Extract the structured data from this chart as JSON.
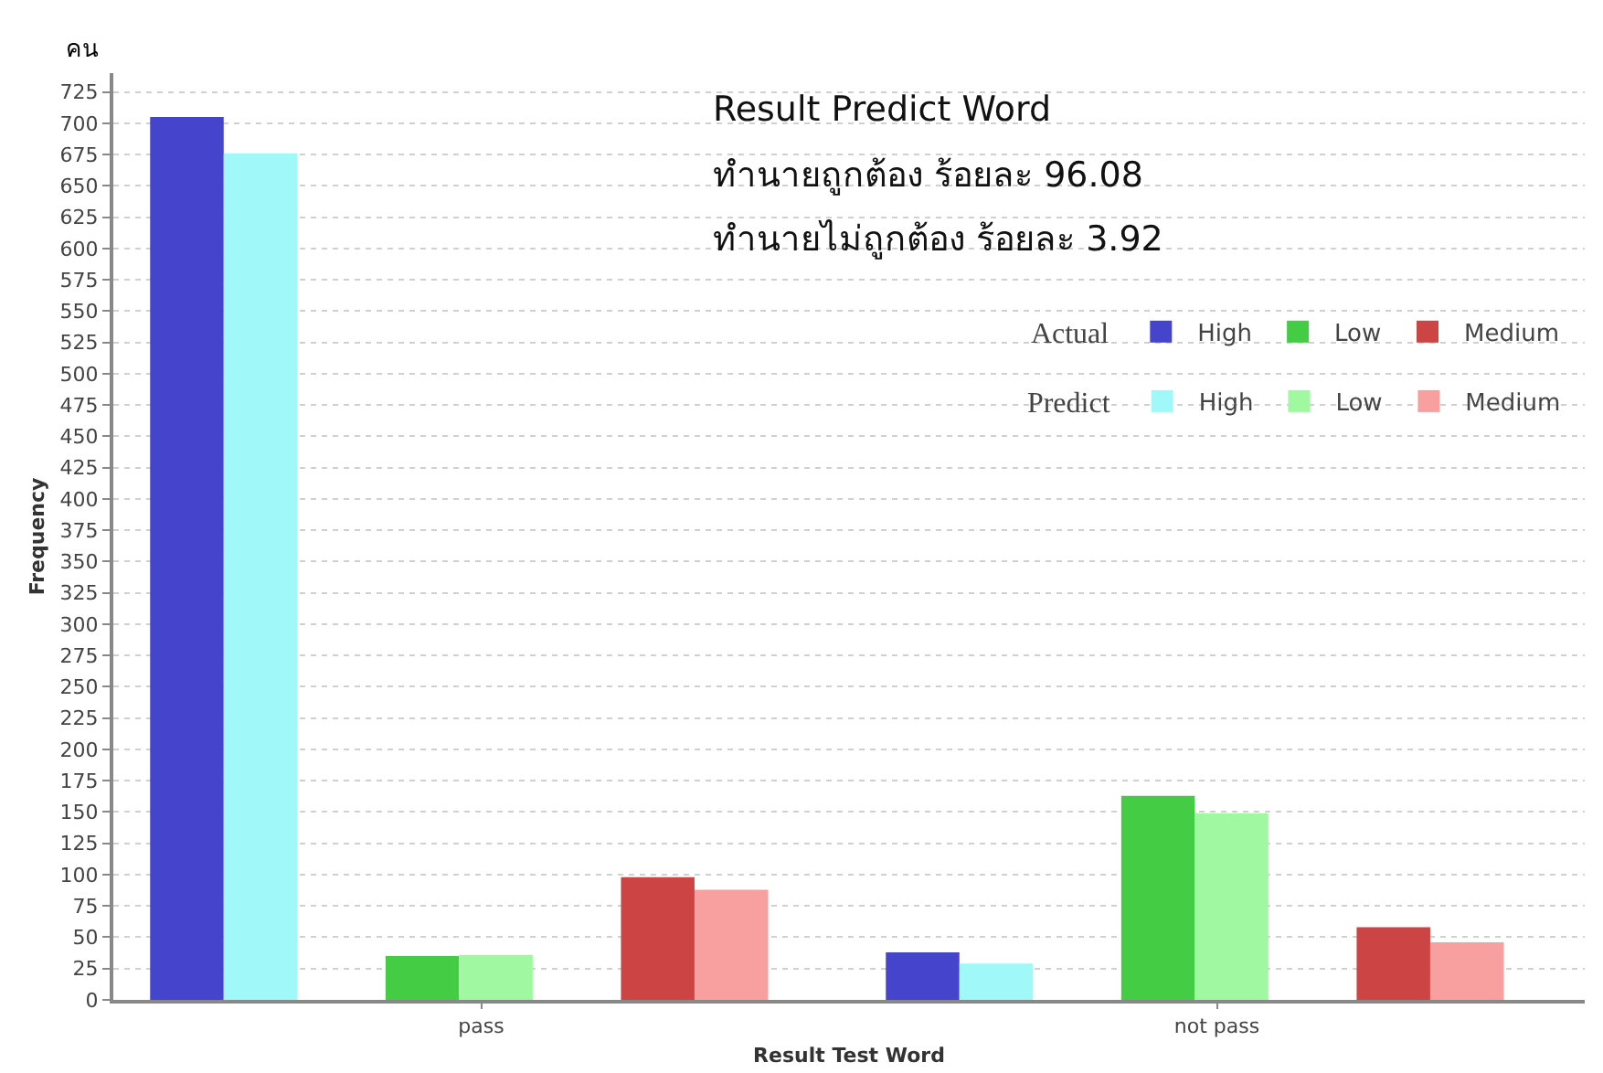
{
  "chart_data": {
    "type": "bar",
    "xlabel": "Result Test Word",
    "ylabel": "Frequency",
    "annotations": [
      "คน",
      "Result Predict Word",
      "ทำนายถูกต้อง ร้อยละ 96.08",
      "ทำนายไม่ถูกต้อง ร้อยละ 3.92",
      "Actual",
      "Predict"
    ],
    "categories": [
      "pass",
      "not pass"
    ],
    "series": [
      {
        "name": "High",
        "color": "#4444cc",
        "values": [
          705,
          38
        ]
      },
      {
        "name": "High",
        "color": "#a0f8f8",
        "values": [
          676,
          29
        ]
      },
      {
        "name": "Low",
        "color": "#44cc44",
        "values": [
          35,
          163
        ]
      },
      {
        "name": "Low",
        "color": "#a0f8a0",
        "values": [
          36,
          149
        ]
      },
      {
        "name": "Medium",
        "color": "#cc4444",
        "values": [
          98,
          58
        ]
      },
      {
        "name": "Medium",
        "color": "#f8a0a0",
        "values": [
          88,
          46
        ]
      }
    ],
    "ylim": [
      0,
      740
    ],
    "yticks": [
      0,
      25,
      50,
      75,
      100,
      125,
      150,
      175,
      200,
      225,
      250,
      275,
      300,
      325,
      350,
      375,
      400,
      425,
      450,
      475,
      500,
      525,
      550,
      575,
      600,
      625,
      650,
      675,
      700,
      725
    ],
    "grid": "y",
    "legend": "top right"
  }
}
